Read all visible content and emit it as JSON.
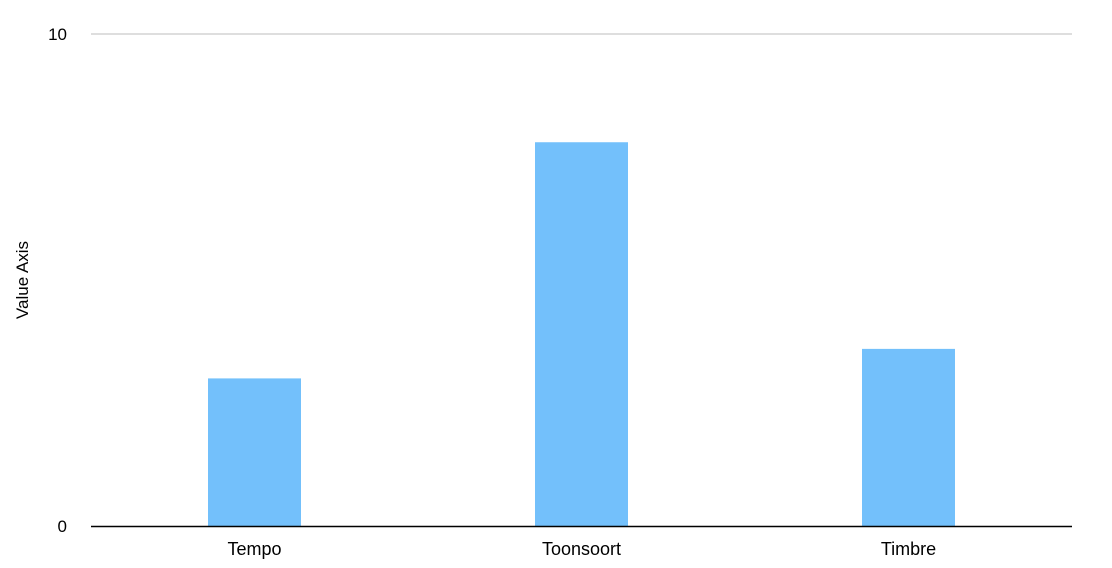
{
  "chart_data": {
    "type": "bar",
    "categories": [
      "Tempo",
      "Toonsoort",
      "Timbre"
    ],
    "values": [
      3,
      7.8,
      3.6
    ],
    "title": "",
    "xlabel": "",
    "ylabel": "Value Axis",
    "ylim": [
      0,
      10
    ],
    "yticks": [
      "0",
      "10"
    ],
    "grid": true,
    "legend": "none",
    "colors": {
      "bar": "#73c0fb",
      "gridline": "#bdbdbd",
      "axis": "#000000"
    }
  }
}
